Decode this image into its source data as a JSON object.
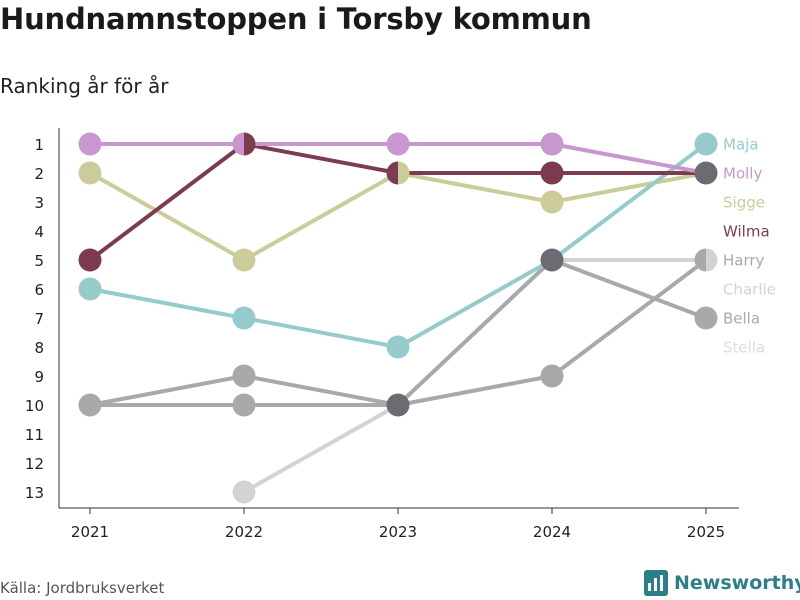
{
  "title": "Hundnamnstoppen i Torsby kommun",
  "subtitle": "Ranking år för år",
  "source": "Källa: Jordbruksverket",
  "brand": "Newsworthy",
  "chart_data": {
    "type": "line",
    "subtype": "bump",
    "categories": [
      "2021",
      "2022",
      "2023",
      "2024",
      "2025"
    ],
    "y_ticks": [
      1,
      2,
      3,
      4,
      5,
      6,
      7,
      8,
      9,
      10,
      11,
      12,
      13
    ],
    "ylim": [
      1,
      13
    ],
    "y_reversed": true,
    "series": [
      {
        "name": "Stella",
        "color": "#dcdcdc",
        "values": [
          null,
          null,
          null,
          null,
          null
        ]
      },
      {
        "name": "Charlie",
        "color": "#d3d3d3",
        "values": [
          null,
          13,
          10,
          5,
          5
        ]
      },
      {
        "name": "Bella",
        "color": "#a9a9ab",
        "values": [
          10,
          10,
          10,
          5,
          7
        ]
      },
      {
        "name": "Harry",
        "color": "#a9a9ab",
        "values": [
          10,
          9,
          10,
          9,
          5
        ]
      },
      {
        "name": "Sigge",
        "color": "#cbcc9a",
        "values": [
          2,
          5,
          2,
          3,
          2
        ]
      },
      {
        "name": "Maja",
        "color": "#95cbcb",
        "values": [
          6,
          7,
          8,
          5,
          1
        ]
      },
      {
        "name": "Wilma",
        "color": "#7d3b50",
        "values": [
          5,
          1,
          2,
          2,
          2
        ]
      },
      {
        "name": "Molly",
        "color": "#c996cf",
        "values": [
          1,
          1,
          1,
          1,
          2
        ]
      }
    ],
    "shared_color": "#6b6b72",
    "label_order": [
      "Maja",
      "Molly",
      "Sigge",
      "Wilma",
      "Harry",
      "Charlie",
      "Bella",
      "Stella"
    ]
  }
}
